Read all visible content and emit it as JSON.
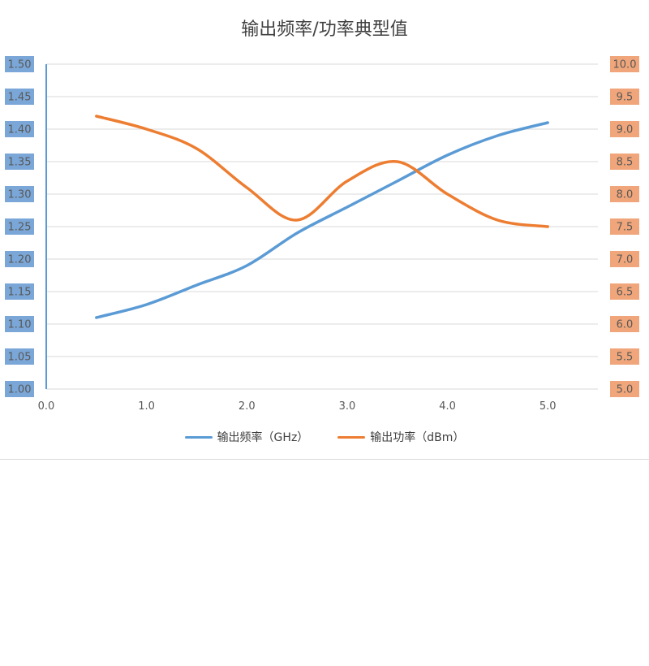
{
  "chart_data": {
    "type": "line",
    "title": "输出频率/功率典型值",
    "x": [
      0.5,
      1.0,
      1.5,
      2.0,
      2.5,
      3.0,
      3.5,
      4.0,
      4.5,
      5.0
    ],
    "xlim": [
      0.0,
      5.5
    ],
    "x_ticks": [
      "0.0",
      "1.0",
      "2.0",
      "3.0",
      "4.0",
      "5.0"
    ],
    "x_tick_values": [
      0,
      1,
      2,
      3,
      4,
      5
    ],
    "y_left": {
      "lim": [
        1.0,
        1.5
      ],
      "ticks": [
        "1.00",
        "1.05",
        "1.10",
        "1.15",
        "1.20",
        "1.25",
        "1.30",
        "1.35",
        "1.40",
        "1.45",
        "1.50"
      ],
      "tick_values": [
        1.0,
        1.05,
        1.1,
        1.15,
        1.2,
        1.25,
        1.3,
        1.35,
        1.4,
        1.45,
        1.5
      ]
    },
    "y_right": {
      "lim": [
        5.0,
        10.0
      ],
      "ticks": [
        "5.0",
        "5.5",
        "6.0",
        "6.5",
        "7.0",
        "7.5",
        "8.0",
        "8.5",
        "9.0",
        "9.5",
        "10.0"
      ],
      "tick_values": [
        5.0,
        5.5,
        6.0,
        6.5,
        7.0,
        7.5,
        8.0,
        8.5,
        9.0,
        9.5,
        10.0
      ]
    },
    "grid": true,
    "legend_position": "bottom",
    "series": [
      {
        "name": "输出频率（GHz）",
        "axis": "left",
        "color": "#5b9bd5",
        "values": [
          1.11,
          1.13,
          1.16,
          1.19,
          1.24,
          1.28,
          1.32,
          1.36,
          1.39,
          1.41
        ]
      },
      {
        "name": "输出功率（dBm）",
        "axis": "right",
        "color": "#ed7d31",
        "values": [
          9.2,
          9.0,
          8.7,
          8.1,
          7.6,
          8.2,
          8.5,
          8.0,
          7.6,
          7.5
        ]
      }
    ],
    "left_tick_bg": "#7ba7d8",
    "right_tick_bg": "#f0a67a"
  }
}
